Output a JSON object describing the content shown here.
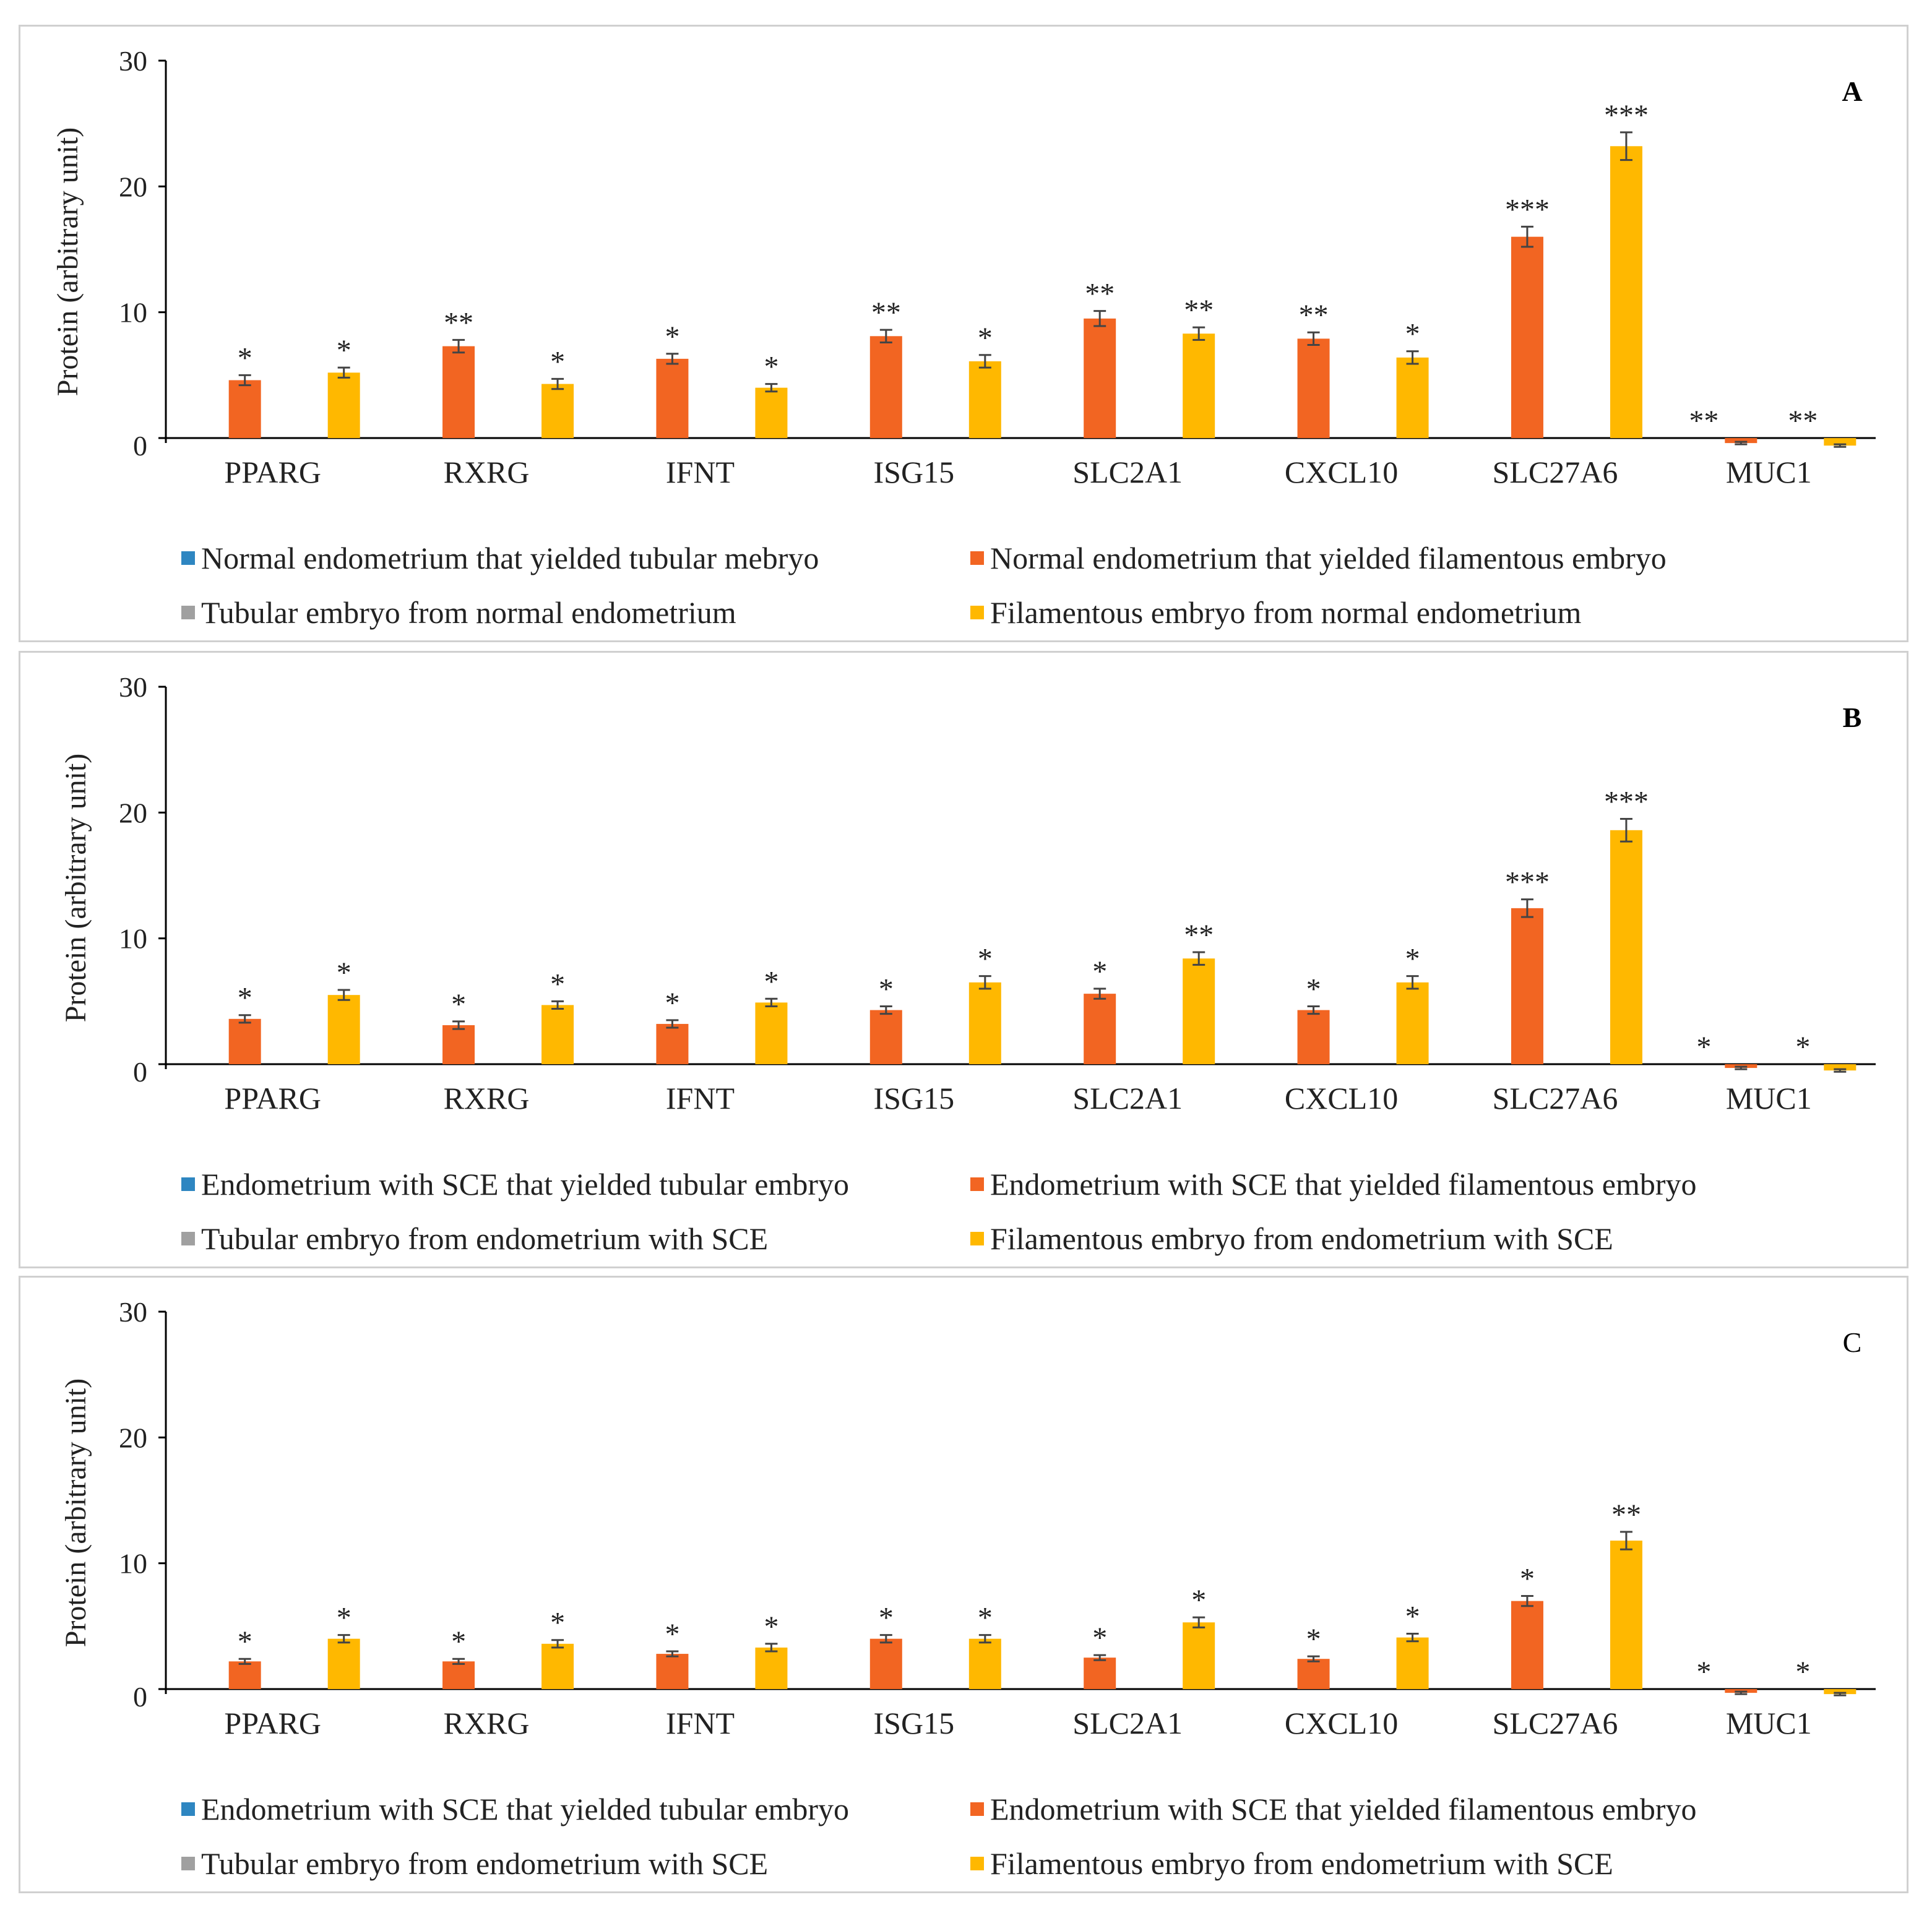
{
  "chart_data": [
    {
      "type": "bar",
      "panel_letter": "A",
      "ylabel": "Protein (arbitrary unit)",
      "ylim": [
        0,
        30
      ],
      "yticks": [
        "0",
        "10",
        "20",
        "30"
      ],
      "categories": [
        "PPARG",
        "RXRG",
        "IFNT",
        "ISG15",
        "SLC2A1",
        "CXCL10",
        "SLC27A6",
        "MUC1"
      ],
      "series": [
        {
          "name": "Normal endometrium that yielded tubular mebryo",
          "color": "#2E86C1",
          "values": [
            0,
            0,
            0,
            0,
            0,
            0,
            0,
            0
          ],
          "errors": [
            0,
            0,
            0,
            0,
            0,
            0,
            0,
            0
          ],
          "sig": [
            "",
            "",
            "",
            "",
            "",
            "",
            "",
            ""
          ]
        },
        {
          "name": "Normal endometrium that yielded filamentous embryo",
          "color": "#F26522",
          "values": [
            4.6,
            7.3,
            6.3,
            8.1,
            9.5,
            7.9,
            16.0,
            -0.4
          ],
          "errors": [
            0.4,
            0.5,
            0.4,
            0.5,
            0.6,
            0.5,
            0.8,
            0.1
          ],
          "sig": [
            "*",
            "**",
            "*",
            "**",
            "**",
            "**",
            "***",
            "**"
          ]
        },
        {
          "name": "Tubular embryo from normal endometrium",
          "color": "#A0A0A0",
          "values": [
            0,
            0,
            0,
            0,
            0,
            0,
            0,
            0
          ],
          "errors": [
            0,
            0,
            0,
            0,
            0,
            0,
            0,
            0
          ],
          "sig": [
            "",
            "",
            "",
            "",
            "",
            "",
            "",
            ""
          ]
        },
        {
          "name": "Filamentous embryo from normal endometrium",
          "color": "#FFB800",
          "values": [
            5.2,
            4.3,
            4.0,
            6.1,
            8.3,
            6.4,
            23.2,
            -0.6
          ],
          "errors": [
            0.4,
            0.4,
            0.3,
            0.5,
            0.5,
            0.5,
            1.1,
            0.1
          ],
          "sig": [
            "*",
            "*",
            "*",
            "*",
            "**",
            "*",
            "***",
            "**"
          ]
        }
      ]
    },
    {
      "type": "bar",
      "panel_letter": "B",
      "ylabel": "Protein (arbitrary unit)",
      "ylim": [
        0,
        30
      ],
      "yticks": [
        "0",
        "10",
        "20",
        "30"
      ],
      "categories": [
        "PPARG",
        "RXRG",
        "IFNT",
        "ISG15",
        "SLC2A1",
        "CXCL10",
        "SLC27A6",
        "MUC1"
      ],
      "series": [
        {
          "name": "Endometrium with SCE that yielded tubular embryo",
          "color": "#2E86C1",
          "values": [
            0,
            0,
            0,
            0,
            0,
            0,
            0,
            0
          ],
          "errors": [
            0,
            0,
            0,
            0,
            0,
            0,
            0,
            0
          ],
          "sig": [
            "",
            "",
            "",
            "",
            "",
            "",
            "",
            ""
          ]
        },
        {
          "name": "Endometrium with SCE that yielded filamentous embryo",
          "color": "#F26522",
          "values": [
            3.6,
            3.1,
            3.2,
            4.3,
            5.6,
            4.3,
            12.4,
            -0.3
          ],
          "errors": [
            0.3,
            0.3,
            0.3,
            0.3,
            0.4,
            0.3,
            0.7,
            0.1
          ],
          "sig": [
            "*",
            "*",
            "*",
            "*",
            "*",
            "*",
            "***",
            "*"
          ]
        },
        {
          "name": "Tubular embryo from endometrium with SCE",
          "color": "#A0A0A0",
          "values": [
            0,
            0,
            0,
            0,
            0,
            0,
            0,
            0
          ],
          "errors": [
            0,
            0,
            0,
            0,
            0,
            0,
            0,
            0
          ],
          "sig": [
            "",
            "",
            "",
            "",
            "",
            "",
            "",
            ""
          ]
        },
        {
          "name": "Filamentous embryo from endometrium with SCE",
          "color": "#FFB800",
          "values": [
            5.5,
            4.7,
            4.9,
            6.5,
            8.4,
            6.5,
            18.6,
            -0.5
          ],
          "errors": [
            0.4,
            0.3,
            0.3,
            0.5,
            0.5,
            0.5,
            0.9,
            0.1
          ],
          "sig": [
            "*",
            "*",
            "*",
            "*",
            "**",
            "*",
            "***",
            "*"
          ]
        }
      ]
    },
    {
      "type": "bar",
      "panel_letter": "C",
      "ylabel": "Protein (arbitrary unit)",
      "ylim": [
        0,
        30
      ],
      "yticks": [
        "0",
        "10",
        "20",
        "30"
      ],
      "categories": [
        "PPARG",
        "RXRG",
        "IFNT",
        "ISG15",
        "SLC2A1",
        "CXCL10",
        "SLC27A6",
        "MUC1"
      ],
      "series": [
        {
          "name": "Endometrium with SCE that yielded tubular embryo",
          "color": "#2E86C1",
          "values": [
            0,
            0,
            0,
            0,
            0,
            0,
            0,
            0
          ],
          "errors": [
            0,
            0,
            0,
            0,
            0,
            0,
            0,
            0
          ],
          "sig": [
            "",
            "",
            "",
            "",
            "",
            "",
            "",
            ""
          ]
        },
        {
          "name": "Endometrium with SCE that yielded filamentous embryo",
          "color": "#F26522",
          "values": [
            2.2,
            2.2,
            2.8,
            4.0,
            2.5,
            2.4,
            7.0,
            -0.3
          ],
          "errors": [
            0.2,
            0.2,
            0.2,
            0.3,
            0.2,
            0.2,
            0.4,
            0.1
          ],
          "sig": [
            "*",
            "*",
            "*",
            "*",
            "*",
            "*",
            "*",
            "*"
          ]
        },
        {
          "name": "Tubular embryo from endometrium with SCE",
          "color": "#A0A0A0",
          "values": [
            0,
            0,
            0,
            0,
            0,
            0,
            0,
            0
          ],
          "errors": [
            0,
            0,
            0,
            0,
            0,
            0,
            0,
            0
          ],
          "sig": [
            "",
            "",
            "",
            "",
            "",
            "",
            "",
            ""
          ]
        },
        {
          "name": "Filamentous embryo from endometrium with SCE",
          "color": "#FFB800",
          "values": [
            4.0,
            3.6,
            3.3,
            4.0,
            5.3,
            4.1,
            11.8,
            -0.4
          ],
          "errors": [
            0.3,
            0.3,
            0.3,
            0.3,
            0.4,
            0.3,
            0.7,
            0.1
          ],
          "sig": [
            "*",
            "*",
            "*",
            "*",
            "*",
            "*",
            "**",
            "*"
          ]
        }
      ]
    }
  ]
}
